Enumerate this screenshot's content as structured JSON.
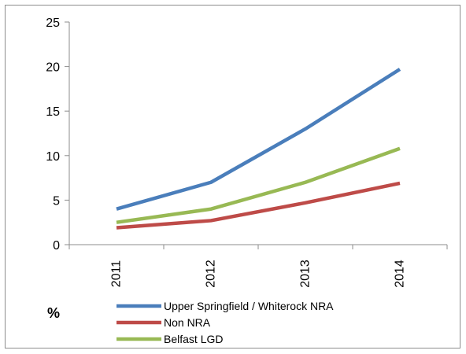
{
  "chart_data": {
    "type": "line",
    "title": "",
    "xlabel": "",
    "ylabel": "%",
    "x": [
      "2011",
      "2012",
      "2013",
      "2014"
    ],
    "ylim": [
      0,
      25
    ],
    "yticks": [
      0,
      5,
      10,
      15,
      20,
      25
    ],
    "grid": false,
    "legend_position": "bottom",
    "series": [
      {
        "name": "Upper Springfield / Whiterock NRA",
        "color": "#4a7ebb",
        "values": [
          4.0,
          7.0,
          13.0,
          19.7
        ]
      },
      {
        "name": "Non NRA",
        "color": "#be4b48",
        "values": [
          1.9,
          2.7,
          4.7,
          6.9
        ]
      },
      {
        "name": "Belfast LGD",
        "color": "#98b954",
        "values": [
          2.5,
          4.0,
          7.0,
          10.8
        ]
      }
    ]
  }
}
